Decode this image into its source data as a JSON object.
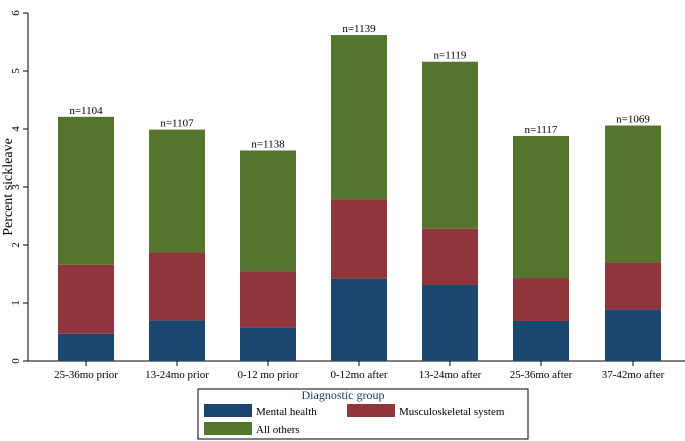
{
  "chart_data": {
    "type": "bar",
    "stacked": true,
    "categories": [
      "25-36mo prior",
      "13-24mo prior",
      "0-12 mo prior",
      "0-12mo after",
      "13-24mo after",
      "25-36mo after",
      "37-42mo after"
    ],
    "series": [
      {
        "name": "Mental health",
        "color": "#1b4670",
        "values": [
          0.47,
          0.7,
          0.58,
          1.42,
          1.31,
          0.69,
          0.89
        ]
      },
      {
        "name": "Musculoskeletal system",
        "color": "#90353b",
        "values": [
          1.19,
          1.17,
          0.97,
          1.37,
          0.97,
          0.74,
          0.81
        ]
      },
      {
        "name": "All others",
        "color": "#55752f",
        "values": [
          2.55,
          2.12,
          2.08,
          2.83,
          2.88,
          2.45,
          2.36
        ]
      }
    ],
    "annotations": [
      "n=1104",
      "n=1107",
      "n=1138",
      "n=1139",
      "n=1119",
      "n=1117",
      "n=1069"
    ],
    "ylabel": "Percent sickleave",
    "xlabel": "",
    "ylim": [
      0,
      6
    ],
    "yticks": [
      0,
      1,
      2,
      3,
      4,
      5,
      6
    ],
    "legend": {
      "title": "Diagnostic group",
      "placement": "bottom"
    }
  }
}
